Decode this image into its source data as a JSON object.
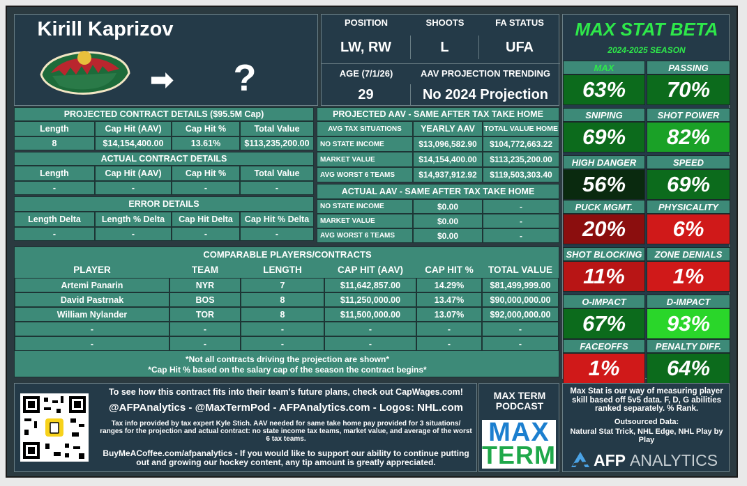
{
  "player": {
    "name": "Kirill Kaprizov",
    "arrow": "➡",
    "destination": "?"
  },
  "info": {
    "position_label": "POSITION",
    "position": "LW, RW",
    "shoots_label": "SHOOTS",
    "shoots": "L",
    "fa_label": "FA STATUS",
    "fa": "UFA",
    "age_label": "AGE (7/1/26)",
    "age": "29",
    "aav_label": "AAV PROJECTION TRENDING",
    "aav": "No 2024 Projection"
  },
  "maxstat": {
    "title": "MAX STAT BETA",
    "season": "2024-2025 SEASON",
    "stats": [
      {
        "label": "MAX",
        "value": "63%",
        "color": "#0c6b1c",
        "label_color": "#2ee84a"
      },
      {
        "label": "PASSING",
        "value": "70%",
        "color": "#0c6b1c"
      },
      {
        "label": "SNIPING",
        "value": "69%",
        "color": "#0c6b1c"
      },
      {
        "label": "SHOT POWER",
        "value": "82%",
        "color": "#1aa127"
      },
      {
        "label": "HIGH DANGER",
        "value": "56%",
        "color": "#0a2a0f"
      },
      {
        "label": "SPEED",
        "value": "69%",
        "color": "#0c6b1c"
      },
      {
        "label": "PUCK MGMT.",
        "value": "20%",
        "color": "#8b0e0e"
      },
      {
        "label": "PHYSICALITY",
        "value": "6%",
        "color": "#d01919"
      },
      {
        "label": "SHOT BLOCKING",
        "value": "11%",
        "color": "#b81515"
      },
      {
        "label": "ZONE DENIALS",
        "value": "1%",
        "color": "#d01919"
      },
      {
        "label": "O-IMPACT",
        "value": "67%",
        "color": "#0c6b1c"
      },
      {
        "label": "D-IMPACT",
        "value": "93%",
        "color": "#2ad62a"
      },
      {
        "label": "FACEOFFS",
        "value": "1%",
        "color": "#d01919"
      },
      {
        "label": "PENALTY DIFF.",
        "value": "64%",
        "color": "#0c6b1c"
      }
    ]
  },
  "projected": {
    "title": "PROJECTED CONTRACT DETAILS ($95.5M Cap)",
    "headers": [
      "Length",
      "Cap Hit (AAV)",
      "Cap Hit %",
      "Total Value"
    ],
    "values": [
      "8",
      "$14,154,400.00",
      "13.61%",
      "$113,235,200.00"
    ]
  },
  "actual": {
    "title": "ACTUAL CONTRACT DETAILS",
    "headers": [
      "Length",
      "Cap Hit (AAV)",
      "Cap Hit %",
      "Total Value"
    ],
    "values": [
      "-",
      "-",
      "-",
      "-"
    ]
  },
  "error": {
    "title": "ERROR DETAILS",
    "headers": [
      "Length Delta",
      "Length % Delta",
      "Cap Hit Delta",
      "Cap Hit % Delta"
    ],
    "values": [
      "-",
      "-",
      "-",
      "-"
    ]
  },
  "tax_projected": {
    "title": "PROJECTED AAV - SAME AFTER TAX TAKE HOME",
    "headers": [
      "AVG TAX SITUATIONS",
      "YEARLY AAV",
      "TOTAL VALUE HOME"
    ],
    "rows": [
      [
        "NO STATE INCOME",
        "$13,096,582.90",
        "$104,772,663.22"
      ],
      [
        "MARKET VALUE",
        "$14,154,400.00",
        "$113,235,200.00"
      ],
      [
        "AVG WORST 6 TEAMS",
        "$14,937,912.92",
        "$119,503,303.40"
      ]
    ]
  },
  "tax_actual": {
    "title": "ACTUAL AAV - SAME AFTER TAX TAKE HOME",
    "rows": [
      [
        "NO STATE INCOME",
        "$0.00",
        "-"
      ],
      [
        "MARKET VALUE",
        "$0.00",
        "-"
      ],
      [
        "AVG WORST 6 TEAMS",
        "$0.00",
        "-"
      ]
    ]
  },
  "comparables": {
    "title": "COMPARABLE PLAYERS/CONTRACTS",
    "headers": [
      "PLAYER",
      "TEAM",
      "LENGTH",
      "CAP HIT (AAV)",
      "CAP HIT %",
      "TOTAL VALUE"
    ],
    "rows": [
      [
        "Artemi Panarin",
        "NYR",
        "7",
        "$11,642,857.00",
        "14.29%",
        "$81,499,999.00"
      ],
      [
        "David Pastrnak",
        "BOS",
        "8",
        "$11,250,000.00",
        "13.47%",
        "$90,000,000.00"
      ],
      [
        "William Nylander",
        "TOR",
        "8",
        "$11,500,000.00",
        "13.07%",
        "$92,000,000.00"
      ],
      [
        "-",
        "-",
        "-",
        "-",
        "-",
        "-"
      ],
      [
        "-",
        "-",
        "-",
        "-",
        "-",
        "-"
      ]
    ],
    "note1": "*Not all contracts driving the projection are shown*",
    "note2": "*Cap Hit % based on the salary cap of the season the contract begins*"
  },
  "footer": {
    "line1": "To see how this contract fits into their team's future plans, check out CapWages.com!",
    "line2": "@AFPAnalytics - @MaxTermPod - AFPAnalytics.com - Logos: NHL.com",
    "line3": "Tax info provided by tax expert Kyle Stich. AAV needed for same take home pay provided for 3 situations/ ranges for the projection and actual contract: no state income tax teams, market value, and average of the worst 6 tax teams.",
    "line4": "BuyMeACoffee.com/afpanalytics - If you would like to support our ability to continue putting out and growing our hockey content, any tip amount is greatly appreciated.",
    "podcast_title": "MAX TERM PODCAST",
    "podcast_logo_top": "MAX",
    "podcast_logo_bottom": "TERM",
    "about": "Max Stat is our way of measuring player skill based off 5v5 data. F, D, G abilities ranked separately. % Rank.",
    "outsourced_label": "Outsourced Data:",
    "outsourced": "Natural Stat Trick, NHL Edge, NHL Play by Play",
    "brand_a": "AFP",
    "brand_b": "ANALYTICS"
  },
  "colors": {
    "teal": "#3d8a78",
    "navy": "#243a48",
    "green_title": "#2ee84a"
  }
}
